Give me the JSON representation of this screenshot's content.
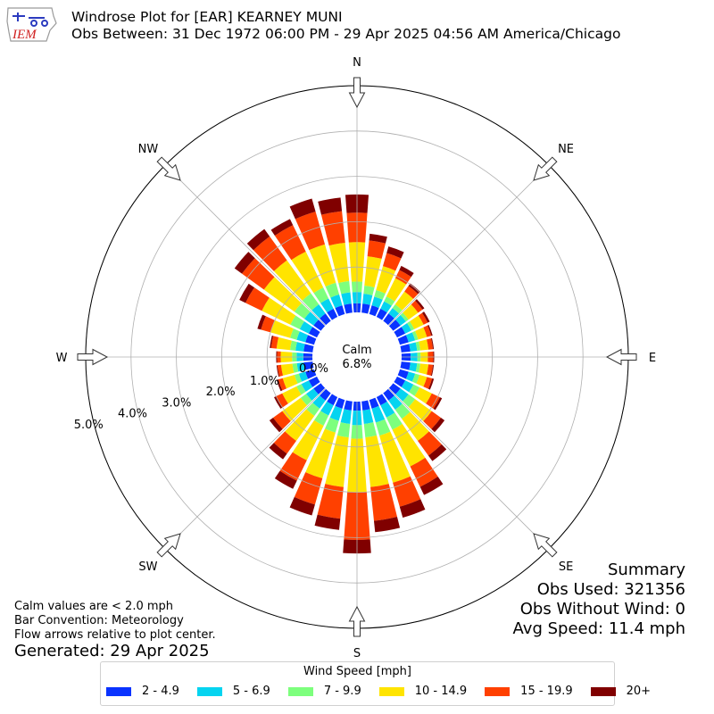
{
  "header": {
    "logo_text": "IEM",
    "title_line1": "Windrose Plot for [EAR] KEARNEY MUNI",
    "title_line2": "Obs Between: 31 Dec 1972 06:00 PM - 29 Apr 2025 04:56 AM America/Chicago"
  },
  "notes": {
    "calm": "Calm values are < 2.0 mph",
    "bar_convention": "Bar Convention: Meteorology",
    "flow": "Flow arrows relative to plot center.",
    "generated": "Generated: 29 Apr 2025"
  },
  "summary": {
    "title": "Summary",
    "obs_used": "Obs Used: 321356",
    "obs_without_wind": "Obs Without Wind: 0",
    "avg_speed": "Avg Speed: 11.4 mph"
  },
  "center": {
    "label": "Calm",
    "value": "6.8%"
  },
  "legend": {
    "title": "Wind Speed [mph]"
  },
  "chart_data": {
    "type": "windrose",
    "calm_percent": 6.8,
    "radial_ticks": [
      "0.0%",
      "1.0%",
      "2.0%",
      "3.0%",
      "4.0%",
      "5.0%"
    ],
    "radial_tick_values": [
      0,
      1,
      2,
      3,
      4,
      5
    ],
    "compass_labels": [
      "N",
      "NE",
      "E",
      "SE",
      "S",
      "SW",
      "W",
      "NW"
    ],
    "directions_deg": [
      0,
      10,
      20,
      30,
      40,
      50,
      60,
      70,
      80,
      90,
      100,
      110,
      120,
      130,
      140,
      150,
      160,
      170,
      180,
      190,
      200,
      210,
      220,
      230,
      240,
      250,
      260,
      270,
      280,
      290,
      300,
      310,
      320,
      330,
      340,
      350
    ],
    "bins": [
      {
        "label": "2 - 4.9",
        "color": "#0a33ff"
      },
      {
        "label": "5 - 6.9",
        "color": "#05d4f0"
      },
      {
        "label": "7 - 9.9",
        "color": "#7dff7d"
      },
      {
        "label": "10 - 14.9",
        "color": "#ffe400"
      },
      {
        "label": "15 - 19.9",
        "color": "#ff4000"
      },
      {
        "label": "20+",
        "color": "#800000"
      }
    ],
    "cumulative_percent": [
      [
        0.2,
        0.45,
        0.68,
        1.55,
        2.2,
        2.6
      ],
      [
        0.2,
        0.42,
        0.6,
        1.25,
        1.6,
        1.75
      ],
      [
        0.2,
        0.4,
        0.55,
        1.1,
        1.4,
        1.55
      ],
      [
        0.2,
        0.38,
        0.5,
        0.95,
        1.15,
        1.25
      ],
      [
        0.2,
        0.35,
        0.45,
        0.8,
        0.95,
        1.02
      ],
      [
        0.2,
        0.35,
        0.42,
        0.68,
        0.8,
        0.85
      ],
      [
        0.2,
        0.35,
        0.42,
        0.65,
        0.75,
        0.8
      ],
      [
        0.2,
        0.35,
        0.42,
        0.62,
        0.72,
        0.75
      ],
      [
        0.2,
        0.35,
        0.42,
        0.6,
        0.7,
        0.72
      ],
      [
        0.2,
        0.35,
        0.42,
        0.58,
        0.7,
        0.72
      ],
      [
        0.2,
        0.35,
        0.42,
        0.6,
        0.7,
        0.72
      ],
      [
        0.2,
        0.35,
        0.45,
        0.62,
        0.74,
        0.78
      ],
      [
        0.2,
        0.4,
        0.55,
        0.85,
        1.05,
        1.1
      ],
      [
        0.2,
        0.42,
        0.6,
        1.05,
        1.3,
        1.4
      ],
      [
        0.2,
        0.45,
        0.7,
        1.3,
        1.7,
        1.85
      ],
      [
        0.2,
        0.5,
        0.8,
        1.7,
        2.2,
        2.4
      ],
      [
        0.2,
        0.52,
        0.82,
        1.9,
        2.45,
        2.7
      ],
      [
        0.2,
        0.5,
        0.8,
        1.9,
        2.65,
        2.9
      ],
      [
        0.2,
        0.52,
        0.82,
        2.0,
        3.05,
        3.35
      ],
      [
        0.2,
        0.5,
        0.8,
        1.9,
        2.6,
        2.85
      ],
      [
        0.2,
        0.48,
        0.75,
        1.8,
        2.4,
        2.65
      ],
      [
        0.2,
        0.45,
        0.7,
        1.55,
        2.05,
        2.25
      ],
      [
        0.2,
        0.42,
        0.62,
        1.3,
        1.65,
        1.8
      ],
      [
        0.2,
        0.4,
        0.55,
        1.05,
        1.3,
        1.4
      ],
      [
        0.2,
        0.38,
        0.5,
        0.85,
        1.0,
        1.05
      ],
      [
        0.2,
        0.35,
        0.45,
        0.72,
        0.82,
        0.86
      ],
      [
        0.2,
        0.35,
        0.45,
        0.7,
        0.78,
        0.8
      ],
      [
        0.2,
        0.35,
        0.45,
        0.7,
        0.78,
        0.8
      ],
      [
        0.2,
        0.38,
        0.5,
        0.8,
        0.92,
        0.95
      ],
      [
        0.2,
        0.4,
        0.55,
        1.0,
        1.22,
        1.3
      ],
      [
        0.2,
        0.42,
        0.65,
        1.35,
        1.75,
        1.9
      ],
      [
        0.2,
        0.45,
        0.72,
        1.55,
        2.15,
        2.35
      ],
      [
        0.2,
        0.45,
        0.75,
        1.65,
        2.3,
        2.5
      ],
      [
        0.2,
        0.45,
        0.72,
        1.6,
        2.25,
        2.4
      ],
      [
        0.2,
        0.45,
        0.72,
        1.6,
        2.35,
        2.65
      ],
      [
        0.2,
        0.45,
        0.7,
        1.55,
        2.25,
        2.55
      ]
    ],
    "grid": true
  }
}
